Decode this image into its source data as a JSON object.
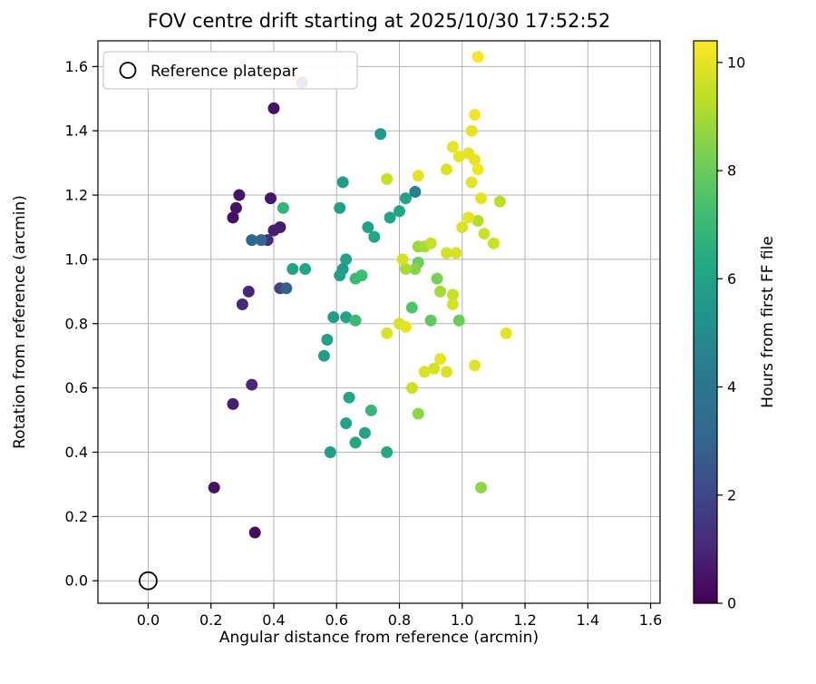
{
  "window": {
    "title": "FOV centre drift starting at 2025/10/30 17:52:52"
  },
  "chart_data": {
    "type": "scatter",
    "title": "FOV centre drift starting at 2025/10/30 17:52:52",
    "xlabel": "Angular distance from reference (arcmin)",
    "ylabel": "Rotation from reference (arcmin)",
    "xlim": [
      -0.16,
      1.63
    ],
    "ylim": [
      -0.07,
      1.68
    ],
    "xticks": [
      0.0,
      0.2,
      0.4,
      0.6,
      0.8,
      1.0,
      1.2,
      1.4,
      1.6
    ],
    "yticks": [
      0.0,
      0.2,
      0.4,
      0.6,
      0.8,
      1.0,
      1.2,
      1.4,
      1.6
    ],
    "grid": true,
    "grid_color": "#b2b2b2",
    "legend": {
      "label": "Reference platepar",
      "position": "upper left"
    },
    "reference_point": {
      "x": 0.0,
      "y": 0.0
    },
    "colorbar": {
      "label": "Hours from first FF file",
      "min": 0,
      "max": 10.4,
      "ticks": [
        0,
        2,
        4,
        6,
        8,
        10
      ],
      "colormap": "viridis"
    },
    "colormap_stops": [
      "#440154",
      "#482878",
      "#3e4a89",
      "#31688e",
      "#2a788e",
      "#21918c",
      "#22a884",
      "#44bf70",
      "#7ad151",
      "#bddf26",
      "#fde725"
    ],
    "points": [
      [
        0.34,
        0.15,
        0.3
      ],
      [
        0.21,
        0.29,
        0.5
      ],
      [
        0.27,
        0.55,
        0.8
      ],
      [
        0.33,
        0.61,
        1.0
      ],
      [
        0.3,
        0.86,
        1.1
      ],
      [
        0.32,
        0.9,
        1.0
      ],
      [
        0.42,
        0.91,
        1.8
      ],
      [
        0.44,
        0.91,
        2.8
      ],
      [
        0.27,
        1.13,
        0.4
      ],
      [
        0.28,
        1.16,
        0.5
      ],
      [
        0.29,
        1.2,
        0.6
      ],
      [
        0.39,
        1.19,
        0.6
      ],
      [
        0.33,
        1.06,
        3.2
      ],
      [
        0.36,
        1.06,
        3.0
      ],
      [
        0.38,
        1.06,
        1.2
      ],
      [
        0.4,
        1.09,
        0.8
      ],
      [
        0.42,
        1.1,
        0.7
      ],
      [
        0.4,
        1.47,
        0.5
      ],
      [
        0.49,
        1.55,
        0.7
      ],
      [
        0.43,
        1.16,
        6.8
      ],
      [
        0.46,
        0.97,
        6.0
      ],
      [
        0.5,
        0.97,
        6.1
      ],
      [
        0.56,
        0.7,
        5.8
      ],
      [
        0.57,
        0.75,
        5.9
      ],
      [
        0.58,
        0.4,
        5.9
      ],
      [
        0.63,
        0.49,
        6.0
      ],
      [
        0.66,
        0.43,
        6.2
      ],
      [
        0.69,
        0.46,
        6.0
      ],
      [
        0.71,
        0.53,
        6.9
      ],
      [
        0.76,
        0.4,
        6.3
      ],
      [
        0.64,
        0.57,
        6.2
      ],
      [
        0.59,
        0.82,
        5.8
      ],
      [
        0.63,
        0.82,
        6.0
      ],
      [
        0.61,
        0.95,
        6.0
      ],
      [
        0.62,
        0.97,
        5.7
      ],
      [
        0.63,
        1.0,
        6.0
      ],
      [
        0.66,
        0.94,
        7.0
      ],
      [
        0.68,
        0.95,
        7.2
      ],
      [
        0.66,
        0.81,
        7.0
      ],
      [
        0.62,
        1.24,
        5.8
      ],
      [
        0.61,
        1.16,
        5.9
      ],
      [
        0.74,
        1.39,
        5.6
      ],
      [
        0.7,
        1.1,
        6.0
      ],
      [
        0.72,
        1.07,
        6.2
      ],
      [
        0.77,
        1.13,
        6.0
      ],
      [
        0.8,
        1.15,
        6.1
      ],
      [
        0.85,
        1.21,
        4.6
      ],
      [
        0.82,
        1.19,
        6.0
      ],
      [
        0.84,
        0.85,
        7.5
      ],
      [
        0.85,
        0.97,
        8.5
      ],
      [
        0.86,
        0.99,
        8.0
      ],
      [
        0.82,
        0.97,
        9.0
      ],
      [
        0.81,
        1.0,
        9.7
      ],
      [
        0.86,
        1.04,
        8.8
      ],
      [
        0.88,
        1.04,
        9.0
      ],
      [
        0.9,
        1.05,
        9.5
      ],
      [
        0.92,
        0.94,
        8.3
      ],
      [
        0.93,
        0.9,
        9.0
      ],
      [
        0.97,
        0.89,
        9.5
      ],
      [
        0.97,
        0.86,
        9.7
      ],
      [
        0.95,
        1.02,
        9.7
      ],
      [
        0.98,
        1.02,
        9.8
      ],
      [
        1.0,
        1.1,
        9.8
      ],
      [
        1.02,
        1.13,
        10.0
      ],
      [
        1.05,
        1.12,
        9.2
      ],
      [
        1.07,
        1.08,
        9.6
      ],
      [
        1.1,
        1.05,
        9.6
      ],
      [
        1.12,
        1.18,
        9.3
      ],
      [
        1.06,
        1.19,
        10.0
      ],
      [
        1.03,
        1.24,
        10.0
      ],
      [
        1.05,
        1.28,
        10.2
      ],
      [
        1.04,
        1.31,
        10.0
      ],
      [
        1.02,
        1.33,
        10.0
      ],
      [
        0.99,
        1.32,
        10.0
      ],
      [
        0.97,
        1.35,
        10.0
      ],
      [
        1.03,
        1.4,
        10.0
      ],
      [
        1.04,
        1.45,
        10.2
      ],
      [
        1.05,
        1.63,
        10.3
      ],
      [
        0.95,
        1.28,
        9.8
      ],
      [
        0.86,
        1.26,
        10.0
      ],
      [
        0.76,
        1.25,
        9.5
      ],
      [
        0.8,
        0.8,
        9.8
      ],
      [
        0.82,
        0.79,
        10.0
      ],
      [
        0.76,
        0.77,
        9.8
      ],
      [
        1.14,
        0.77,
        10.0
      ],
      [
        0.88,
        0.65,
        9.8
      ],
      [
        0.91,
        0.66,
        9.7
      ],
      [
        0.93,
        0.69,
        10.0
      ],
      [
        0.95,
        0.65,
        9.8
      ],
      [
        1.04,
        0.67,
        9.9
      ],
      [
        0.84,
        0.6,
        9.6
      ],
      [
        0.86,
        0.52,
        8.6
      ],
      [
        1.06,
        0.29,
        8.6
      ],
      [
        0.9,
        0.81,
        7.8
      ],
      [
        0.99,
        0.81,
        8.0
      ]
    ]
  }
}
